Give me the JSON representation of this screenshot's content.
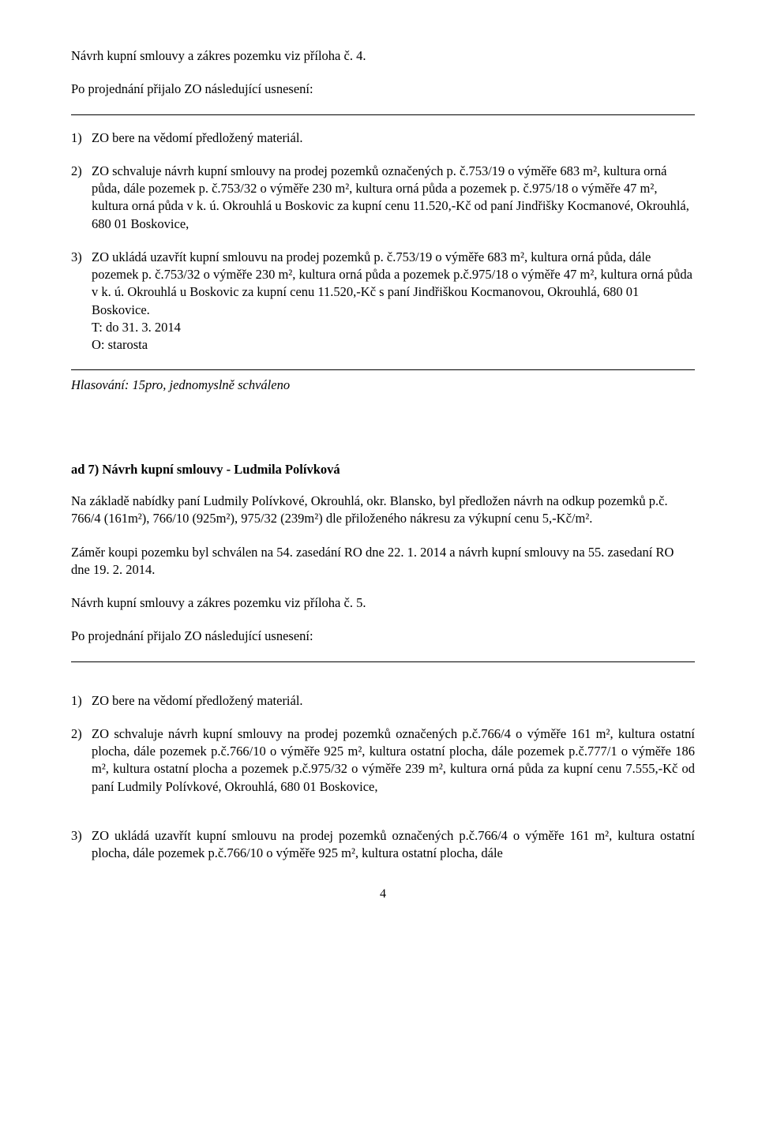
{
  "p1": "Návrh kupní smlouvy a zákres pozemku viz příloha č. 4.",
  "p2": "Po projednání přijalo ZO následující usnesení:",
  "itemA1_num": "1)",
  "itemA1": "ZO bere na vědomí předložený materiál.",
  "itemA2_num": "2)",
  "itemA2": "ZO schvaluje návrh kupní smlouvy na prodej pozemků označených p. č.753/19 o výměře 683 m², kultura orná půda, dále pozemek p. č.753/32 o výměře 230 m², kultura orná půda a pozemek p. č.975/18 o výměře 47 m², kultura orná půda v k. ú. Okrouhlá u Boskovic za kupní cenu 11.520,-Kč od paní Jindřišky Kocmanové, Okrouhlá, 680 01 Boskovice,",
  "itemA3_num": "3)",
  "itemA3": "ZO ukládá uzavřít kupní smlouvu na prodej pozemků p. č.753/19 o výměře 683 m², kultura orná půda, dále pozemek p. č.753/32 o výměře 230 m², kultura orná půda a pozemek p.č.975/18 o výměře 47 m², kultura orná půda v k. ú. Okrouhlá u Boskovic za kupní cenu 11.520,-Kč s paní Jindřiškou Kocmanovou, Okrouhlá, 680 01 Boskovice.",
  "itemA3_t": "T: do 31. 3. 2014",
  "itemA3_o": "O: starosta",
  "hlasA": "Hlasování: 15pro, jednomyslně schváleno",
  "ad7": "ad 7)  Návrh kupní smlouvy - Ludmila Polívková",
  "p7a": "Na základě nabídky paní Ludmily Polívkové, Okrouhlá, okr. Blansko, byl předložen návrh na odkup pozemků p.č. 766/4 (161m²), 766/10 (925m²), 975/32 (239m²) dle přiloženého nákresu za výkupní cenu 5,-Kč/m².",
  "p7b": "Záměr koupi pozemku byl schválen na 54. zasedání RO dne 22. 1. 2014 a návrh kupní smlouvy na 55. zasedaní RO dne 19. 2. 2014.",
  "p7c": "Návrh kupní smlouvy a zákres pozemku viz příloha č. 5.",
  "p7d": "Po projednání přijalo ZO následující usnesení:",
  "itemB1_num": "1)",
  "itemB1": "ZO bere na vědomí předložený materiál.",
  "itemB2_num": "2)",
  "itemB2": "ZO schvaluje návrh kupní smlouvy na prodej pozemků označených p.č.766/4 o výměře 161 m², kultura ostatní plocha, dále pozemek p.č.766/10 o výměře 925 m², kultura ostatní plocha, dále pozemek p.č.777/1 o výměře 186 m², kultura ostatní plocha a pozemek p.č.975/32 o výměře 239 m², kultura orná půda za kupní cenu 7.555,-Kč od paní Ludmily Polívkové, Okrouhlá, 680 01 Boskovice,",
  "itemB3_num": "3)",
  "itemB3": "ZO ukládá uzavřít kupní smlouvu na prodej pozemků označených p.č.766/4 o výměře 161 m², kultura ostatní plocha, dále pozemek p.č.766/10 o výměře 925 m², kultura ostatní plocha, dále",
  "pagenum": "4"
}
